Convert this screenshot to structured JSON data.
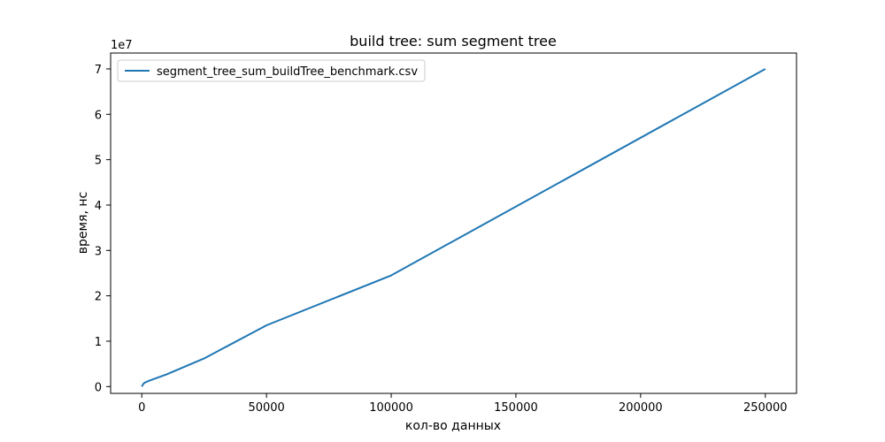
{
  "chart_data": {
    "type": "line",
    "title": "build tree: sum segment tree",
    "xlabel": "кол-во данных",
    "ylabel": "время, нс",
    "y_scale_label": "1e7",
    "y_scale_factor": 10000000,
    "xlim": [
      -12500,
      262500
    ],
    "ylim": [
      -1500000,
      73500000
    ],
    "xticks": [
      0,
      50000,
      100000,
      150000,
      200000,
      250000
    ],
    "xtick_labels": [
      "0",
      "50000",
      "100000",
      "150000",
      "200000",
      "250000"
    ],
    "yticks": [
      0,
      10000000,
      20000000,
      30000000,
      40000000,
      50000000,
      60000000,
      70000000
    ],
    "ytick_labels": [
      "0",
      "1",
      "2",
      "3",
      "4",
      "5",
      "6",
      "7"
    ],
    "grid": false,
    "legend_position": "upper-left",
    "series": [
      {
        "name": "segment_tree_sum_buildTree_benchmark.csv",
        "color": "#1f77b4",
        "x": [
          0,
          500,
          1000,
          2500,
          5000,
          10000,
          25000,
          50000,
          100000,
          250000
        ],
        "y": [
          0,
          500000,
          800000,
          1200000,
          1700000,
          2700000,
          6200000,
          13500000,
          24500000,
          70000000
        ]
      }
    ]
  }
}
